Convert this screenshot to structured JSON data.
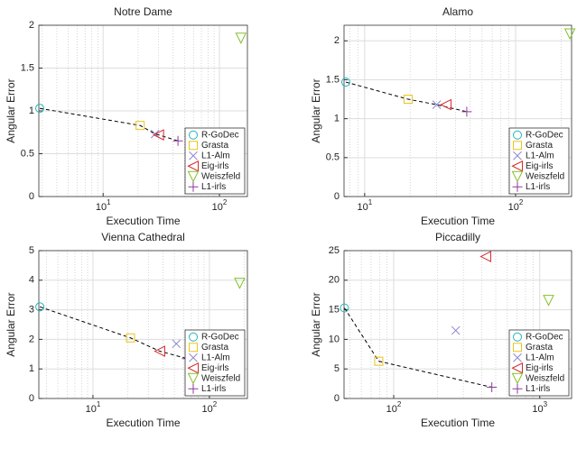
{
  "chart_data": [
    {
      "type": "scatter",
      "title": "Notre Dame",
      "xlabel": "Execution Time",
      "ylabel": "Angular Error",
      "xscale": "log",
      "xlim": [
        2.8,
        174
      ],
      "ylim": [
        0,
        2
      ],
      "xticks": [
        {
          "value": 10,
          "label": "10^1"
        },
        {
          "value": 100,
          "label": "10^2"
        }
      ],
      "yticks": [
        0,
        0.5,
        1,
        1.5,
        2
      ],
      "grid": true,
      "legend": "lower right",
      "front_line": "dashed",
      "series": [
        {
          "name": "R-GoDec",
          "color": "#22b5b8",
          "marker": "circle",
          "x": [
            2.85
          ],
          "values": [
            1.03
          ]
        },
        {
          "name": "Grasta",
          "color": "#e8c51a",
          "marker": "square",
          "x": [
            20.8
          ],
          "values": [
            0.83
          ]
        },
        {
          "name": "L1-Alm",
          "color": "#8c86d0",
          "marker": "x",
          "x": [
            28
          ],
          "values": [
            0.73
          ]
        },
        {
          "name": "Eig-irls",
          "color": "#d8282a",
          "marker": "triangle-left",
          "x": [
            30
          ],
          "values": [
            0.72
          ]
        },
        {
          "name": "Weiszfeld",
          "color": "#84c02a",
          "marker": "triangle-down",
          "x": [
            153
          ],
          "values": [
            1.85
          ]
        },
        {
          "name": "L1-irls",
          "color": "#8e3a9c",
          "marker": "plus",
          "x": [
            44
          ],
          "values": [
            0.65
          ]
        }
      ]
    },
    {
      "type": "scatter",
      "title": "Alamo",
      "xlabel": "Execution Time",
      "ylabel": "Angular Error",
      "xscale": "log",
      "xlim": [
        7.3,
        235
      ],
      "ylim": [
        0,
        2.2
      ],
      "xticks": [
        {
          "value": 10,
          "label": "10^1"
        },
        {
          "value": 100,
          "label": "10^2"
        }
      ],
      "yticks": [
        0,
        0.5,
        1,
        1.5,
        2
      ],
      "grid": true,
      "legend": "lower right",
      "front_line": "dashed",
      "series": [
        {
          "name": "R-GoDec",
          "color": "#22b5b8",
          "marker": "circle",
          "x": [
            7.5
          ],
          "values": [
            1.47
          ]
        },
        {
          "name": "Grasta",
          "color": "#e8c51a",
          "marker": "square",
          "x": [
            19.4
          ],
          "values": [
            1.25
          ]
        },
        {
          "name": "L1-Alm",
          "color": "#8c86d0",
          "marker": "x",
          "x": [
            30
          ],
          "values": [
            1.18
          ]
        },
        {
          "name": "Eig-irls",
          "color": "#d8282a",
          "marker": "triangle-left",
          "x": [
            34.6
          ],
          "values": [
            1.18
          ]
        },
        {
          "name": "Weiszfeld",
          "color": "#84c02a",
          "marker": "triangle-down",
          "x": [
            229
          ],
          "values": [
            2.09
          ]
        },
        {
          "name": "L1-irls",
          "color": "#8e3a9c",
          "marker": "plus",
          "x": [
            47.5
          ],
          "values": [
            1.09
          ]
        }
      ]
    },
    {
      "type": "scatter",
      "title": "Vienna Cathedral",
      "xlabel": "Execution Time",
      "ylabel": "Angular Error",
      "xscale": "log",
      "xlim": [
        3.43,
        212
      ],
      "ylim": [
        0,
        5
      ],
      "xticks": [
        {
          "value": 10,
          "label": "10^1"
        },
        {
          "value": 100,
          "label": "10^2"
        }
      ],
      "yticks": [
        0,
        1,
        2,
        3,
        4,
        5
      ],
      "grid": true,
      "legend": "lower right",
      "front_line": "dashed",
      "series": [
        {
          "name": "R-GoDec",
          "color": "#22b5b8",
          "marker": "circle",
          "x": [
            3.5
          ],
          "values": [
            3.1
          ]
        },
        {
          "name": "Grasta",
          "color": "#e8c51a",
          "marker": "square",
          "x": [
            21
          ],
          "values": [
            2.05
          ]
        },
        {
          "name": "L1-Alm",
          "color": "#8c86d0",
          "marker": "x",
          "x": [
            52
          ],
          "values": [
            1.85
          ]
        },
        {
          "name": "Eig-irls",
          "color": "#d8282a",
          "marker": "triangle-left",
          "x": [
            37.5
          ],
          "values": [
            1.6
          ]
        },
        {
          "name": "Weiszfeld",
          "color": "#84c02a",
          "marker": "triangle-down",
          "x": [
            182
          ],
          "values": [
            3.9
          ]
        },
        {
          "name": "L1-irls",
          "color": "#8e3a9c",
          "marker": "plus",
          "x": [
            64
          ],
          "values": [
            1.35
          ]
        }
      ]
    },
    {
      "type": "scatter",
      "title": "Piccadilly",
      "xlabel": "Execution Time",
      "ylabel": "Angular Error",
      "xscale": "log",
      "xlim": [
        45.7,
        1653
      ],
      "ylim": [
        0,
        25
      ],
      "xticks": [
        {
          "value": 100,
          "label": "10^2"
        },
        {
          "value": 1000,
          "label": "10^3"
        }
      ],
      "yticks": [
        0,
        5,
        10,
        15,
        20,
        25
      ],
      "grid": true,
      "legend": "lower right",
      "front_line": "dashed",
      "series": [
        {
          "name": "R-GoDec",
          "color": "#22b5b8",
          "marker": "circle",
          "x": [
            46
          ],
          "values": [
            15.3
          ]
        },
        {
          "name": "Grasta",
          "color": "#e8c51a",
          "marker": "square",
          "x": [
            79
          ],
          "values": [
            6.3
          ]
        },
        {
          "name": "L1-Alm",
          "color": "#8c86d0",
          "marker": "x",
          "x": [
            266
          ],
          "values": [
            11.5
          ]
        },
        {
          "name": "Eig-irls",
          "color": "#d8282a",
          "marker": "triangle-left",
          "x": [
            427
          ],
          "values": [
            24
          ]
        },
        {
          "name": "Weiszfeld",
          "color": "#84c02a",
          "marker": "triangle-down",
          "x": [
            1150
          ],
          "values": [
            16.6
          ]
        },
        {
          "name": "L1-irls",
          "color": "#8e3a9c",
          "marker": "plus",
          "x": [
            470
          ],
          "values": [
            1.9
          ]
        }
      ]
    }
  ]
}
